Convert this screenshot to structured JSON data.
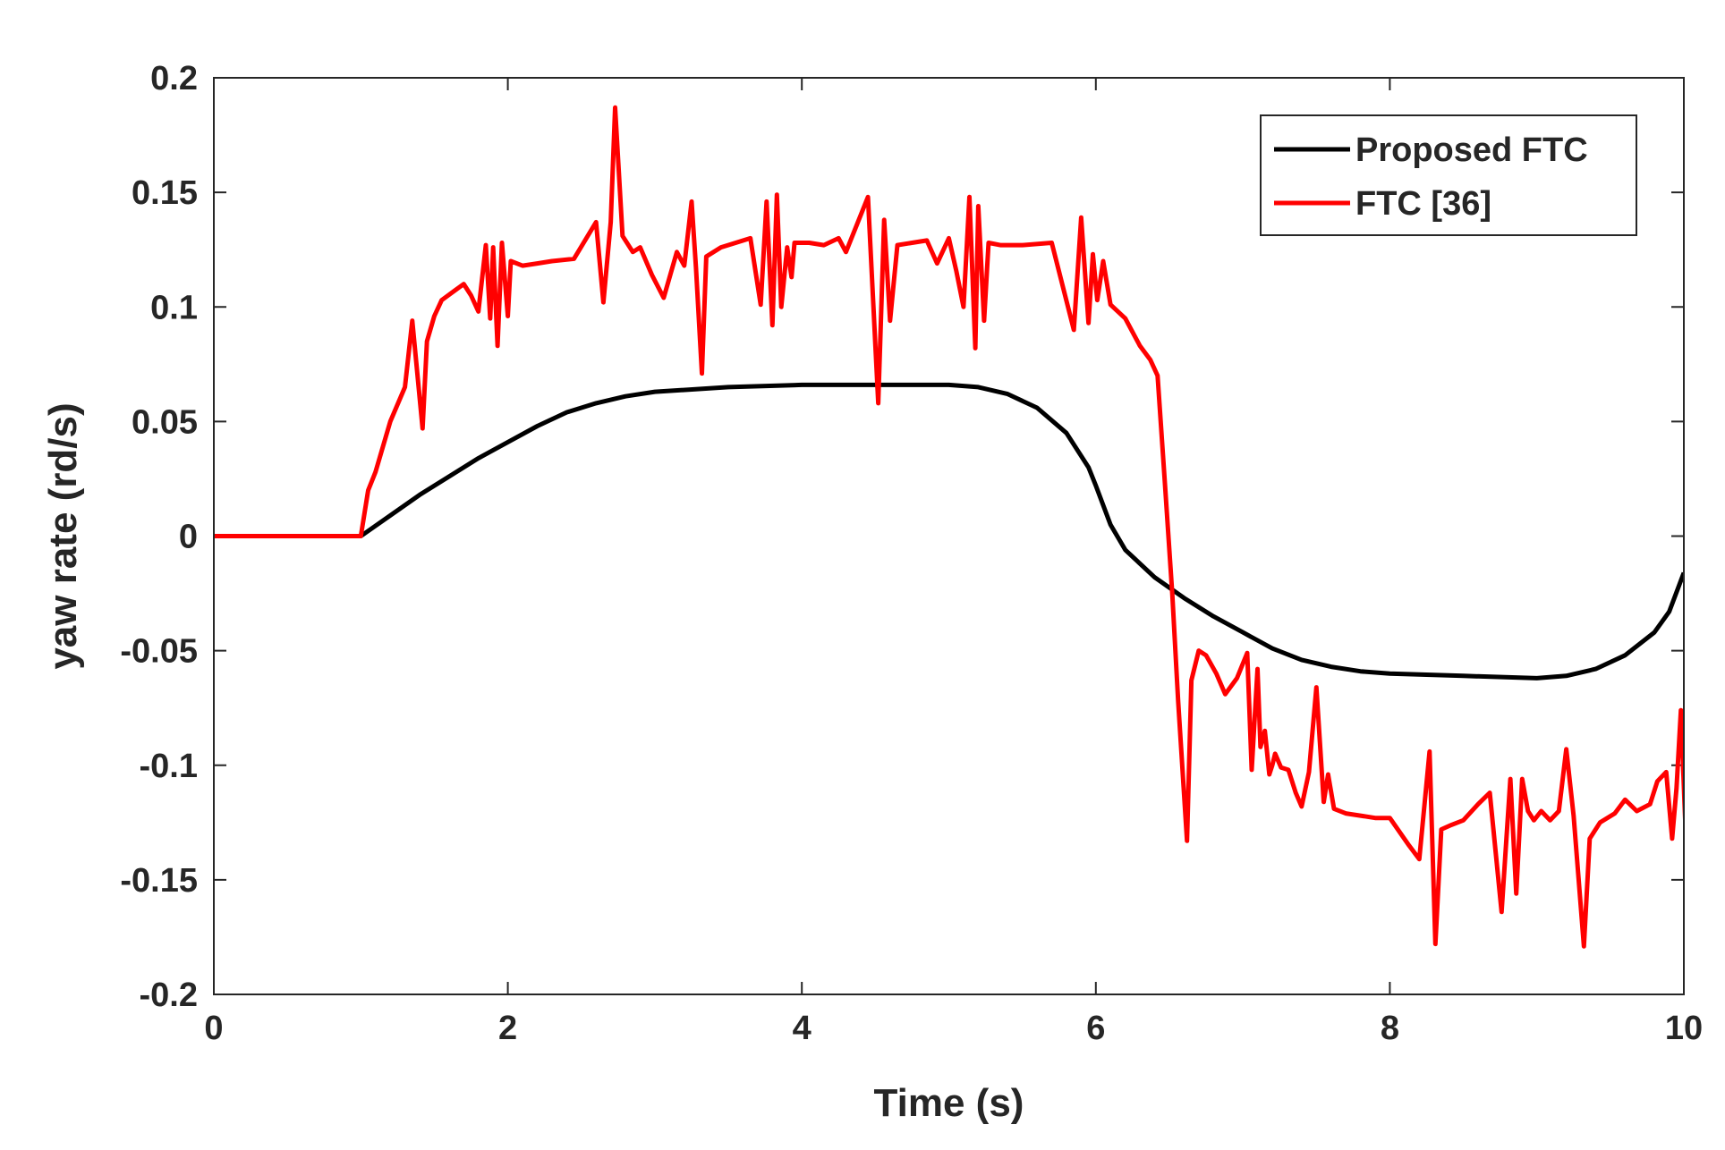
{
  "chart_data": {
    "type": "line",
    "title": "",
    "xlabel": "Time (s)",
    "ylabel": "yaw rate (rd/s)",
    "xlim": [
      0,
      10
    ],
    "ylim": [
      -0.2,
      0.2
    ],
    "xticks": [
      0,
      2,
      4,
      6,
      8,
      10
    ],
    "yticks": [
      0.2,
      0.15,
      0.1,
      0.05,
      0,
      -0.05,
      -0.1,
      -0.15,
      -0.2
    ],
    "xtick_labels": [
      "0",
      "2",
      "4",
      "6",
      "8",
      "10"
    ],
    "ytick_labels": [
      "0.2",
      "0.15",
      "0.1",
      "0.05",
      "0",
      "-0.05",
      "-0.1",
      "-0.15",
      "-0.2"
    ],
    "grid": false,
    "legend_position": "top-right",
    "series": [
      {
        "name": "Proposed FTC",
        "color": "#000000",
        "points": [
          [
            0,
            0
          ],
          [
            1,
            0
          ],
          [
            1.2,
            0.009
          ],
          [
            1.4,
            0.018
          ],
          [
            1.6,
            0.026
          ],
          [
            1.8,
            0.034
          ],
          [
            2,
            0.041
          ],
          [
            2.2,
            0.048
          ],
          [
            2.4,
            0.054
          ],
          [
            2.6,
            0.058
          ],
          [
            2.8,
            0.061
          ],
          [
            3,
            0.063
          ],
          [
            3.5,
            0.065
          ],
          [
            4,
            0.066
          ],
          [
            4.5,
            0.066
          ],
          [
            5,
            0.066
          ],
          [
            5.2,
            0.065
          ],
          [
            5.4,
            0.062
          ],
          [
            5.6,
            0.056
          ],
          [
            5.8,
            0.045
          ],
          [
            5.95,
            0.03
          ],
          [
            6,
            0.022
          ],
          [
            6.1,
            0.005
          ],
          [
            6.2,
            -0.006
          ],
          [
            6.4,
            -0.018
          ],
          [
            6.6,
            -0.027
          ],
          [
            6.8,
            -0.035
          ],
          [
            7,
            -0.042
          ],
          [
            7.2,
            -0.049
          ],
          [
            7.4,
            -0.054
          ],
          [
            7.6,
            -0.057
          ],
          [
            7.8,
            -0.059
          ],
          [
            8,
            -0.06
          ],
          [
            8.5,
            -0.061
          ],
          [
            9,
            -0.062
          ],
          [
            9.2,
            -0.061
          ],
          [
            9.4,
            -0.058
          ],
          [
            9.6,
            -0.052
          ],
          [
            9.8,
            -0.042
          ],
          [
            9.9,
            -0.033
          ],
          [
            10,
            -0.016
          ]
        ]
      },
      {
        "name": "FTC [36]",
        "color": "#ff0000",
        "points": [
          [
            0,
            0
          ],
          [
            1,
            0
          ],
          [
            1.05,
            0.02
          ],
          [
            1.1,
            0.028
          ],
          [
            1.2,
            0.05
          ],
          [
            1.3,
            0.065
          ],
          [
            1.35,
            0.094
          ],
          [
            1.42,
            0.047
          ],
          [
            1.45,
            0.085
          ],
          [
            1.5,
            0.096
          ],
          [
            1.55,
            0.103
          ],
          [
            1.7,
            0.11
          ],
          [
            1.75,
            0.105
          ],
          [
            1.8,
            0.098
          ],
          [
            1.85,
            0.127
          ],
          [
            1.88,
            0.095
          ],
          [
            1.9,
            0.126
          ],
          [
            1.93,
            0.083
          ],
          [
            1.96,
            0.128
          ],
          [
            2,
            0.096
          ],
          [
            2.02,
            0.12
          ],
          [
            2.1,
            0.118
          ],
          [
            2.2,
            0.119
          ],
          [
            2.3,
            0.12
          ],
          [
            2.45,
            0.121
          ],
          [
            2.6,
            0.137
          ],
          [
            2.65,
            0.102
          ],
          [
            2.7,
            0.137
          ],
          [
            2.73,
            0.187
          ],
          [
            2.78,
            0.131
          ],
          [
            2.85,
            0.124
          ],
          [
            2.9,
            0.126
          ],
          [
            2.98,
            0.114
          ],
          [
            3.06,
            0.104
          ],
          [
            3.15,
            0.124
          ],
          [
            3.2,
            0.118
          ],
          [
            3.25,
            0.146
          ],
          [
            3.28,
            0.117
          ],
          [
            3.32,
            0.071
          ],
          [
            3.35,
            0.122
          ],
          [
            3.45,
            0.126
          ],
          [
            3.55,
            0.128
          ],
          [
            3.65,
            0.13
          ],
          [
            3.72,
            0.101
          ],
          [
            3.76,
            0.146
          ],
          [
            3.8,
            0.092
          ],
          [
            3.83,
            0.149
          ],
          [
            3.86,
            0.1
          ],
          [
            3.9,
            0.126
          ],
          [
            3.93,
            0.113
          ],
          [
            3.95,
            0.128
          ],
          [
            4.05,
            0.128
          ],
          [
            4.15,
            0.127
          ],
          [
            4.25,
            0.13
          ],
          [
            4.3,
            0.124
          ],
          [
            4.45,
            0.148
          ],
          [
            4.52,
            0.058
          ],
          [
            4.56,
            0.138
          ],
          [
            4.6,
            0.094
          ],
          [
            4.65,
            0.127
          ],
          [
            4.75,
            0.128
          ],
          [
            4.85,
            0.129
          ],
          [
            4.92,
            0.119
          ],
          [
            5,
            0.13
          ],
          [
            5.05,
            0.116
          ],
          [
            5.1,
            0.1
          ],
          [
            5.14,
            0.148
          ],
          [
            5.18,
            0.082
          ],
          [
            5.2,
            0.144
          ],
          [
            5.24,
            0.094
          ],
          [
            5.27,
            0.128
          ],
          [
            5.35,
            0.127
          ],
          [
            5.5,
            0.127
          ],
          [
            5.7,
            0.128
          ],
          [
            5.85,
            0.09
          ],
          [
            5.9,
            0.139
          ],
          [
            5.95,
            0.093
          ],
          [
            5.98,
            0.123
          ],
          [
            6.01,
            0.103
          ],
          [
            6.05,
            0.12
          ],
          [
            6.1,
            0.101
          ],
          [
            6.2,
            0.095
          ],
          [
            6.3,
            0.083
          ],
          [
            6.37,
            0.077
          ],
          [
            6.42,
            0.07
          ],
          [
            6.47,
            0.023
          ],
          [
            6.52,
            -0.025
          ],
          [
            6.56,
            -0.072
          ],
          [
            6.62,
            -0.133
          ],
          [
            6.65,
            -0.063
          ],
          [
            6.7,
            -0.05
          ],
          [
            6.75,
            -0.052
          ],
          [
            6.82,
            -0.06
          ],
          [
            6.88,
            -0.069
          ],
          [
            6.96,
            -0.062
          ],
          [
            7.03,
            -0.051
          ],
          [
            7.06,
            -0.102
          ],
          [
            7.1,
            -0.058
          ],
          [
            7.12,
            -0.092
          ],
          [
            7.15,
            -0.085
          ],
          [
            7.18,
            -0.104
          ],
          [
            7.2,
            -0.1
          ],
          [
            7.22,
            -0.095
          ],
          [
            7.26,
            -0.101
          ],
          [
            7.31,
            -0.102
          ],
          [
            7.36,
            -0.112
          ],
          [
            7.4,
            -0.118
          ],
          [
            7.45,
            -0.103
          ],
          [
            7.5,
            -0.066
          ],
          [
            7.55,
            -0.116
          ],
          [
            7.58,
            -0.104
          ],
          [
            7.62,
            -0.119
          ],
          [
            7.7,
            -0.121
          ],
          [
            7.8,
            -0.122
          ],
          [
            7.9,
            -0.123
          ],
          [
            8,
            -0.123
          ],
          [
            8.13,
            -0.135
          ],
          [
            8.2,
            -0.141
          ],
          [
            8.27,
            -0.094
          ],
          [
            8.31,
            -0.178
          ],
          [
            8.35,
            -0.128
          ],
          [
            8.42,
            -0.126
          ],
          [
            8.5,
            -0.124
          ],
          [
            8.6,
            -0.117
          ],
          [
            8.68,
            -0.112
          ],
          [
            8.76,
            -0.164
          ],
          [
            8.82,
            -0.106
          ],
          [
            8.86,
            -0.156
          ],
          [
            8.9,
            -0.106
          ],
          [
            8.94,
            -0.12
          ],
          [
            8.98,
            -0.124
          ],
          [
            9.03,
            -0.12
          ],
          [
            9.09,
            -0.124
          ],
          [
            9.15,
            -0.12
          ],
          [
            9.2,
            -0.093
          ],
          [
            9.25,
            -0.122
          ],
          [
            9.32,
            -0.179
          ],
          [
            9.36,
            -0.132
          ],
          [
            9.43,
            -0.125
          ],
          [
            9.53,
            -0.121
          ],
          [
            9.6,
            -0.115
          ],
          [
            9.68,
            -0.12
          ],
          [
            9.77,
            -0.117
          ],
          [
            9.82,
            -0.107
          ],
          [
            9.88,
            -0.103
          ],
          [
            9.92,
            -0.132
          ],
          [
            9.95,
            -0.11
          ],
          [
            9.98,
            -0.076
          ],
          [
            10.02,
            -0.142
          ],
          [
            10.06,
            -0.092
          ],
          [
            10.1,
            -0.136
          ],
          [
            10.14,
            -0.108
          ],
          [
            10.2,
            -0.11
          ],
          [
            10.26,
            -0.108
          ],
          [
            10.32,
            -0.097
          ],
          [
            10.36,
            -0.098
          ]
        ]
      }
    ]
  }
}
